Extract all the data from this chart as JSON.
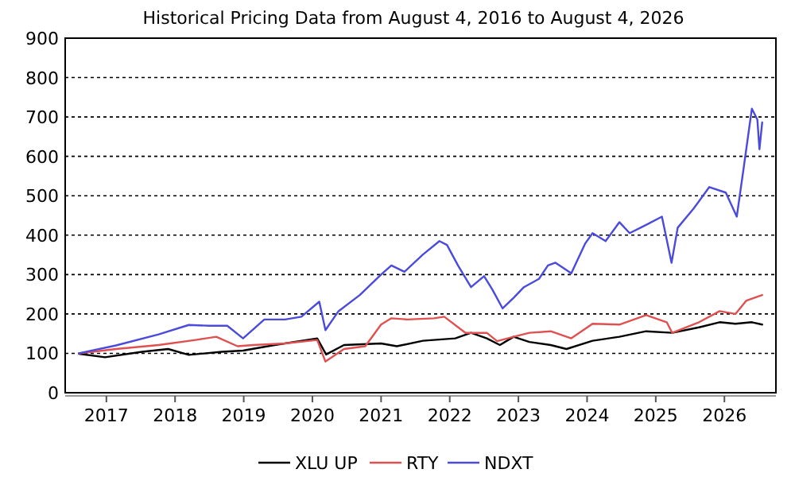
{
  "chart_data": {
    "type": "line",
    "title": "Historical Pricing Data from August 4, 2016 to August 4, 2026",
    "xlim": [
      2016.4,
      2026.75
    ],
    "xticks": [
      2017,
      2018,
      2019,
      2020,
      2021,
      2022,
      2023,
      2024,
      2025,
      2026
    ],
    "ylim": [
      0,
      900
    ],
    "yticks": [
      0,
      100,
      200,
      300,
      400,
      500,
      600,
      700,
      800,
      900
    ],
    "grid": "y",
    "legend": "bottom",
    "line_style": "solid",
    "series": [
      {
        "name": "XLU UP",
        "color": "#000000",
        "x": [
          2016.6,
          2016.98,
          2017.52,
          2017.9,
          2018.2,
          2018.68,
          2018.99,
          2019.45,
          2020.07,
          2020.2,
          2020.46,
          2021,
          2021.23,
          2021.61,
          2022.08,
          2022.31,
          2022.54,
          2022.73,
          2022.93,
          2023.16,
          2023.47,
          2023.7,
          2024.08,
          2024.47,
          2024.86,
          2025.24,
          2025.63,
          2025.93,
          2026.16,
          2026.4,
          2026.55
        ],
        "values": [
          99,
          90,
          104,
          111,
          96,
          104,
          107,
          121,
          138,
          97,
          121,
          125,
          118,
          132,
          138,
          152,
          138,
          121,
          142,
          129,
          121,
          111,
          132,
          142,
          156,
          152,
          166,
          179,
          175,
          179,
          173
        ]
      },
      {
        "name": "RTY",
        "color": "#e05050",
        "x": [
          2016.6,
          2017.14,
          2017.76,
          2018.3,
          2018.6,
          2018.91,
          2019.14,
          2019.6,
          2020.07,
          2020.19,
          2020.46,
          2020.77,
          2021,
          2021.15,
          2021.38,
          2021.77,
          2021.92,
          2022.23,
          2022.54,
          2022.69,
          2022.93,
          2023.16,
          2023.47,
          2023.77,
          2024.08,
          2024.47,
          2024.86,
          2025.16,
          2025.24,
          2025.63,
          2025.93,
          2026.16,
          2026.32,
          2026.55
        ],
        "values": [
          100,
          111,
          121,
          134,
          142,
          118,
          121,
          125,
          134,
          79,
          111,
          118,
          173,
          189,
          186,
          189,
          193,
          152,
          152,
          131,
          142,
          152,
          156,
          138,
          175,
          173,
          197,
          179,
          152,
          179,
          207,
          200,
          234,
          248
        ]
      },
      {
        "name": "NDXT",
        "color": "#4a4adc",
        "x": [
          2016.6,
          2017.14,
          2017.76,
          2018.2,
          2018.5,
          2018.76,
          2018.99,
          2019.3,
          2019.6,
          2019.84,
          2020.1,
          2020.19,
          2020.38,
          2020.69,
          2021,
          2021.15,
          2021.34,
          2021.61,
          2021.85,
          2021.96,
          2022.12,
          2022.31,
          2022.5,
          2022.62,
          2022.77,
          2022.93,
          2023.08,
          2023.3,
          2023.43,
          2023.54,
          2023.77,
          2023.97,
          2024.08,
          2024.27,
          2024.47,
          2024.62,
          2024.86,
          2025.09,
          2025.23,
          2025.32,
          2025.55,
          2025.78,
          2026.02,
          2026.18,
          2026.28,
          2026.4,
          2026.48,
          2026.51,
          2026.55
        ],
        "values": [
          100,
          120,
          148,
          172,
          170,
          170,
          138,
          186,
          186,
          193,
          231,
          159,
          207,
          248,
          300,
          323,
          307,
          351,
          385,
          375,
          323,
          268,
          296,
          262,
          214,
          241,
          268,
          289,
          323,
          330,
          303,
          378,
          405,
          385,
          433,
          405,
          426,
          447,
          330,
          419,
          467,
          522,
          508,
          447,
          570,
          721,
          693,
          618,
          686
        ]
      }
    ]
  }
}
